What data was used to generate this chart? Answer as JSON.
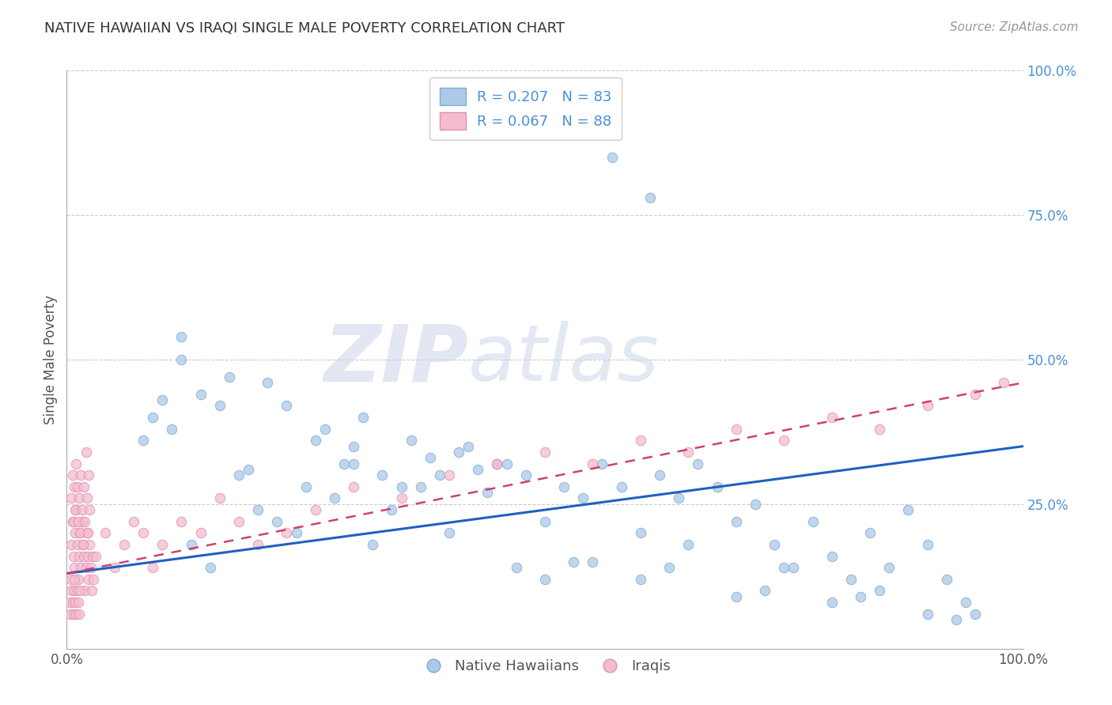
{
  "title": "NATIVE HAWAIIAN VS IRAQI SINGLE MALE POVERTY CORRELATION CHART",
  "source": "Source: ZipAtlas.com",
  "ylabel": "Single Male Poverty",
  "xlim": [
    0.0,
    1.0
  ],
  "ylim": [
    0.0,
    1.0
  ],
  "legend_entries": [
    {
      "label": "R = 0.207   N = 83",
      "color": "#adc9e8"
    },
    {
      "label": "R = 0.067   N = 88",
      "color": "#f5bcd0"
    }
  ],
  "legend_bottom": [
    {
      "label": "Native Hawaiians",
      "color": "#adc9e8"
    },
    {
      "label": "Iraqis",
      "color": "#f5bcd0"
    }
  ],
  "watermark": "ZIPAtlas",
  "blue_scatter_x": [
    0.57,
    0.61,
    0.12,
    0.12,
    0.08,
    0.09,
    0.1,
    0.11,
    0.14,
    0.16,
    0.17,
    0.19,
    0.21,
    0.23,
    0.26,
    0.27,
    0.29,
    0.3,
    0.31,
    0.33,
    0.34,
    0.36,
    0.37,
    0.38,
    0.39,
    0.41,
    0.43,
    0.44,
    0.46,
    0.48,
    0.5,
    0.52,
    0.54,
    0.56,
    0.58,
    0.6,
    0.62,
    0.64,
    0.66,
    0.68,
    0.7,
    0.72,
    0.74,
    0.76,
    0.78,
    0.8,
    0.82,
    0.84,
    0.86,
    0.88,
    0.9,
    0.92,
    0.94,
    0.42,
    0.45,
    0.2,
    0.25,
    0.22,
    0.18,
    0.28,
    0.3,
    0.35,
    0.24,
    0.32,
    0.15,
    0.13,
    0.4,
    0.47,
    0.55,
    0.65,
    0.75,
    0.85,
    0.95,
    0.5,
    0.6,
    0.7,
    0.8,
    0.9,
    0.53,
    0.63,
    0.73,
    0.83,
    0.93
  ],
  "blue_scatter_y": [
    0.85,
    0.78,
    0.54,
    0.5,
    0.36,
    0.4,
    0.43,
    0.38,
    0.44,
    0.42,
    0.47,
    0.31,
    0.46,
    0.42,
    0.36,
    0.38,
    0.32,
    0.35,
    0.4,
    0.3,
    0.24,
    0.36,
    0.28,
    0.33,
    0.3,
    0.34,
    0.31,
    0.27,
    0.32,
    0.3,
    0.22,
    0.28,
    0.26,
    0.32,
    0.28,
    0.2,
    0.3,
    0.26,
    0.32,
    0.28,
    0.22,
    0.25,
    0.18,
    0.14,
    0.22,
    0.16,
    0.12,
    0.2,
    0.14,
    0.24,
    0.18,
    0.12,
    0.08,
    0.35,
    0.32,
    0.24,
    0.28,
    0.22,
    0.3,
    0.26,
    0.32,
    0.28,
    0.2,
    0.18,
    0.14,
    0.18,
    0.2,
    0.14,
    0.15,
    0.18,
    0.14,
    0.1,
    0.06,
    0.12,
    0.12,
    0.09,
    0.08,
    0.06,
    0.15,
    0.14,
    0.1,
    0.09,
    0.05
  ],
  "pink_scatter_x": [
    0.005,
    0.006,
    0.007,
    0.008,
    0.009,
    0.01,
    0.011,
    0.012,
    0.013,
    0.014,
    0.015,
    0.016,
    0.017,
    0.018,
    0.019,
    0.02,
    0.021,
    0.022,
    0.023,
    0.024,
    0.025,
    0.026,
    0.027,
    0.028,
    0.005,
    0.006,
    0.007,
    0.008,
    0.009,
    0.01,
    0.011,
    0.012,
    0.013,
    0.014,
    0.015,
    0.016,
    0.017,
    0.018,
    0.019,
    0.02,
    0.021,
    0.022,
    0.023,
    0.024,
    0.03,
    0.04,
    0.05,
    0.06,
    0.07,
    0.08,
    0.09,
    0.1,
    0.12,
    0.14,
    0.16,
    0.18,
    0.2,
    0.23,
    0.26,
    0.3,
    0.35,
    0.4,
    0.45,
    0.5,
    0.55,
    0.6,
    0.65,
    0.7,
    0.75,
    0.8,
    0.85,
    0.9,
    0.95,
    0.98,
    0.003,
    0.004,
    0.005,
    0.005,
    0.006,
    0.007,
    0.008,
    0.008,
    0.009,
    0.01,
    0.011,
    0.012,
    0.013,
    0.014
  ],
  "pink_scatter_y": [
    0.18,
    0.22,
    0.16,
    0.14,
    0.2,
    0.24,
    0.18,
    0.12,
    0.16,
    0.2,
    0.14,
    0.22,
    0.18,
    0.16,
    0.1,
    0.14,
    0.2,
    0.16,
    0.12,
    0.18,
    0.14,
    0.1,
    0.16,
    0.12,
    0.26,
    0.3,
    0.22,
    0.28,
    0.24,
    0.32,
    0.28,
    0.22,
    0.26,
    0.2,
    0.3,
    0.24,
    0.18,
    0.28,
    0.22,
    0.34,
    0.26,
    0.2,
    0.3,
    0.24,
    0.16,
    0.2,
    0.14,
    0.18,
    0.22,
    0.2,
    0.14,
    0.18,
    0.22,
    0.2,
    0.26,
    0.22,
    0.18,
    0.2,
    0.24,
    0.28,
    0.26,
    0.3,
    0.32,
    0.34,
    0.32,
    0.36,
    0.34,
    0.38,
    0.36,
    0.4,
    0.38,
    0.42,
    0.44,
    0.46,
    0.08,
    0.06,
    0.1,
    0.12,
    0.08,
    0.06,
    0.1,
    0.12,
    0.08,
    0.06,
    0.1,
    0.08,
    0.06,
    0.1
  ],
  "blue_line_x": [
    0.0,
    1.0
  ],
  "blue_line_y": [
    0.13,
    0.35
  ],
  "pink_line_x": [
    0.0,
    1.0
  ],
  "pink_line_y": [
    0.13,
    0.46
  ],
  "background_color": "#ffffff",
  "grid_color": "#cccccc",
  "scatter_blue_color": "#adc9e8",
  "scatter_blue_edge": "#7aaed0",
  "scatter_pink_color": "#f5bcd0",
  "scatter_pink_edge": "#e090b0",
  "line_blue_color": "#2060c0",
  "line_pink_color": "#d04070",
  "title_color": "#333333",
  "source_color": "#999999"
}
